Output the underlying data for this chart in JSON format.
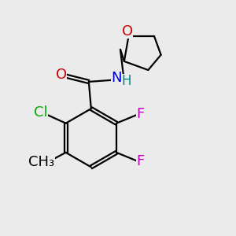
{
  "bg_color": "#ebebeb",
  "bond_color": "#000000",
  "bond_lw": 1.6,
  "colors": {
    "O": "#cc0000",
    "N": "#0000cc",
    "H": "#008888",
    "Cl": "#00aa00",
    "F": "#bb00bb",
    "C": "#000000"
  },
  "font_size": 13
}
